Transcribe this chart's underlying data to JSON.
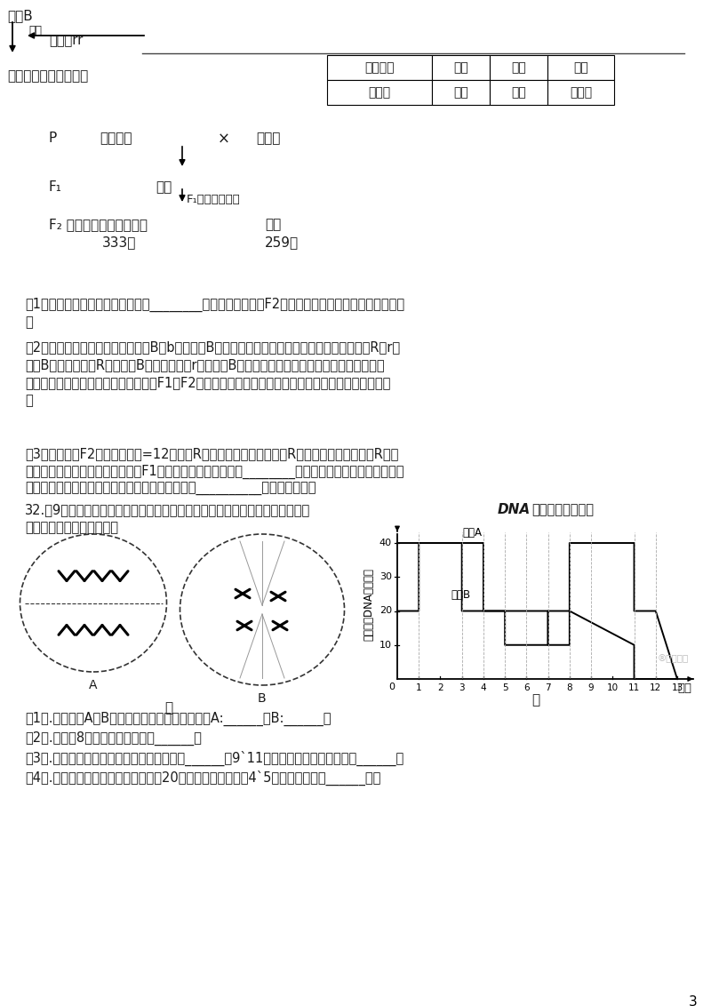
{
  "bg_color": "#ffffff",
  "text_color": "#1a1a1a",
  "page_number": "3",
  "table_row1": [
    "连城白鸭",
    "白色",
    "白色",
    "黑色"
  ],
  "table_row2": [
    "白改鸭",
    "白色",
    "白色",
    "橙黄色"
  ],
  "curve_a_x": [
    0,
    3,
    3,
    4,
    4,
    7,
    7,
    8,
    8,
    11,
    11,
    12,
    12,
    13
  ],
  "curve_a_y": [
    40,
    40,
    20,
    20,
    20,
    20,
    10,
    10,
    40,
    40,
    20,
    20,
    20,
    0
  ],
  "curve_b_x": [
    0,
    1,
    1,
    4,
    4,
    5,
    5,
    7,
    7,
    8,
    8,
    11,
    11,
    13
  ],
  "curve_b_y": [
    20,
    20,
    40,
    40,
    20,
    20,
    10,
    10,
    20,
    20,
    20,
    10,
    0,
    0
  ]
}
